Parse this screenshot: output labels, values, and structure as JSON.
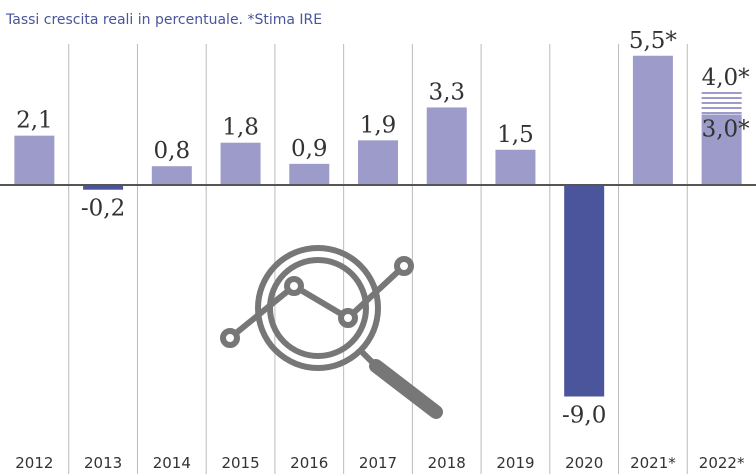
{
  "chart_data": {
    "type": "bar",
    "subtitle": "Tassi crescita reali in percentuale. *Stima IRE",
    "categories": [
      "2012",
      "2013",
      "2014",
      "2015",
      "2016",
      "2017",
      "2018",
      "2019",
      "2020",
      "2021*",
      "2022*"
    ],
    "values": [
      2.1,
      -0.2,
      0.8,
      1.8,
      0.9,
      1.9,
      3.3,
      1.5,
      -9.0,
      5.5,
      3.0
    ],
    "value_labels": [
      "2,1",
      "-0,2",
      "0,8",
      "1,8",
      "0,9",
      "1,9",
      "3,3",
      "1,5",
      "-9,0",
      "5,5*",
      "3,0*"
    ],
    "upper_values": [
      null,
      null,
      null,
      null,
      null,
      null,
      null,
      null,
      null,
      null,
      4.0
    ],
    "upper_value_labels": [
      null,
      null,
      null,
      null,
      null,
      null,
      null,
      null,
      null,
      null,
      "4,0*"
    ],
    "color": "#9d9bc9",
    "negative_color": "#4a559b",
    "ylim": [
      -10,
      6
    ]
  }
}
